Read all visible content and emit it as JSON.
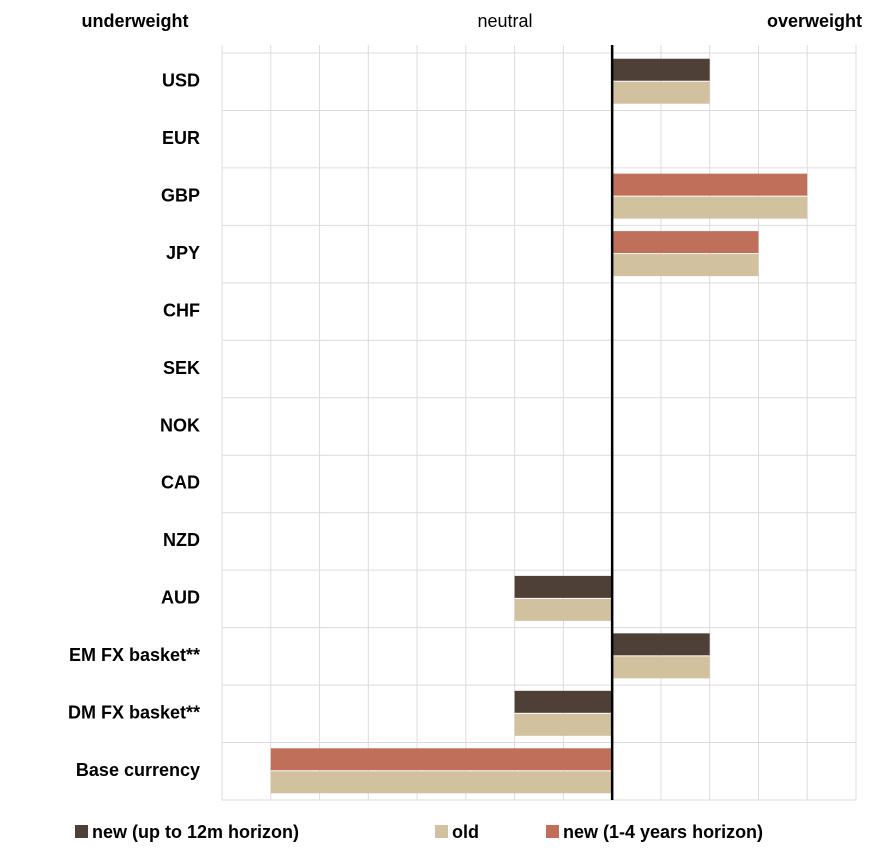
{
  "chart_data": {
    "type": "bar",
    "orientation": "horizontal",
    "left_label": "underweight",
    "center_label": "neutral",
    "right_label": "overweight",
    "categories": [
      "USD",
      "EUR",
      "GBP",
      "JPY",
      "CHF",
      "SEK",
      "NOK",
      "CAD",
      "NZD",
      "AUD",
      "EM FX basket**",
      "DM FX basket**",
      "Base currency"
    ],
    "series": [
      {
        "name": "new (up to 12m horizon)",
        "color": "#4e3f37",
        "values": [
          2,
          null,
          null,
          null,
          null,
          null,
          null,
          null,
          null,
          -2,
          2,
          -2,
          null
        ]
      },
      {
        "name": "old",
        "color": "#d2c19f",
        "values": [
          2,
          null,
          4,
          3,
          null,
          null,
          null,
          null,
          null,
          -2,
          2,
          -2,
          -7
        ]
      },
      {
        "name": "new (1-4 years horizon)",
        "color": "#c0705a",
        "values": [
          null,
          null,
          4,
          3,
          null,
          null,
          null,
          null,
          null,
          null,
          null,
          null,
          -7
        ]
      }
    ],
    "xlim": [
      -8,
      5
    ],
    "xticks": [
      -8,
      -7,
      -6,
      -5,
      -4,
      -3,
      -2,
      -1,
      0,
      1,
      2,
      3,
      4,
      5
    ],
    "grid": true,
    "legend": "bottom"
  }
}
